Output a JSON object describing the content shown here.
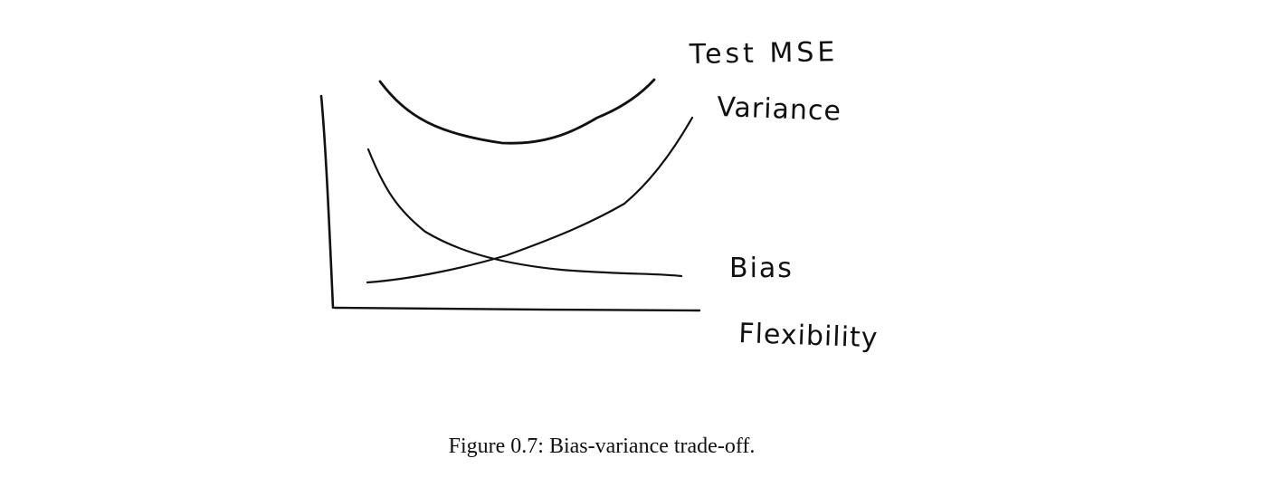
{
  "diagram": {
    "labels": {
      "test_mse": "Test MSE",
      "variance": "Variance",
      "bias": "Bias",
      "flexibility": "Flexibility"
    }
  },
  "caption": "Figure 0.7: Bias-variance trade-off."
}
